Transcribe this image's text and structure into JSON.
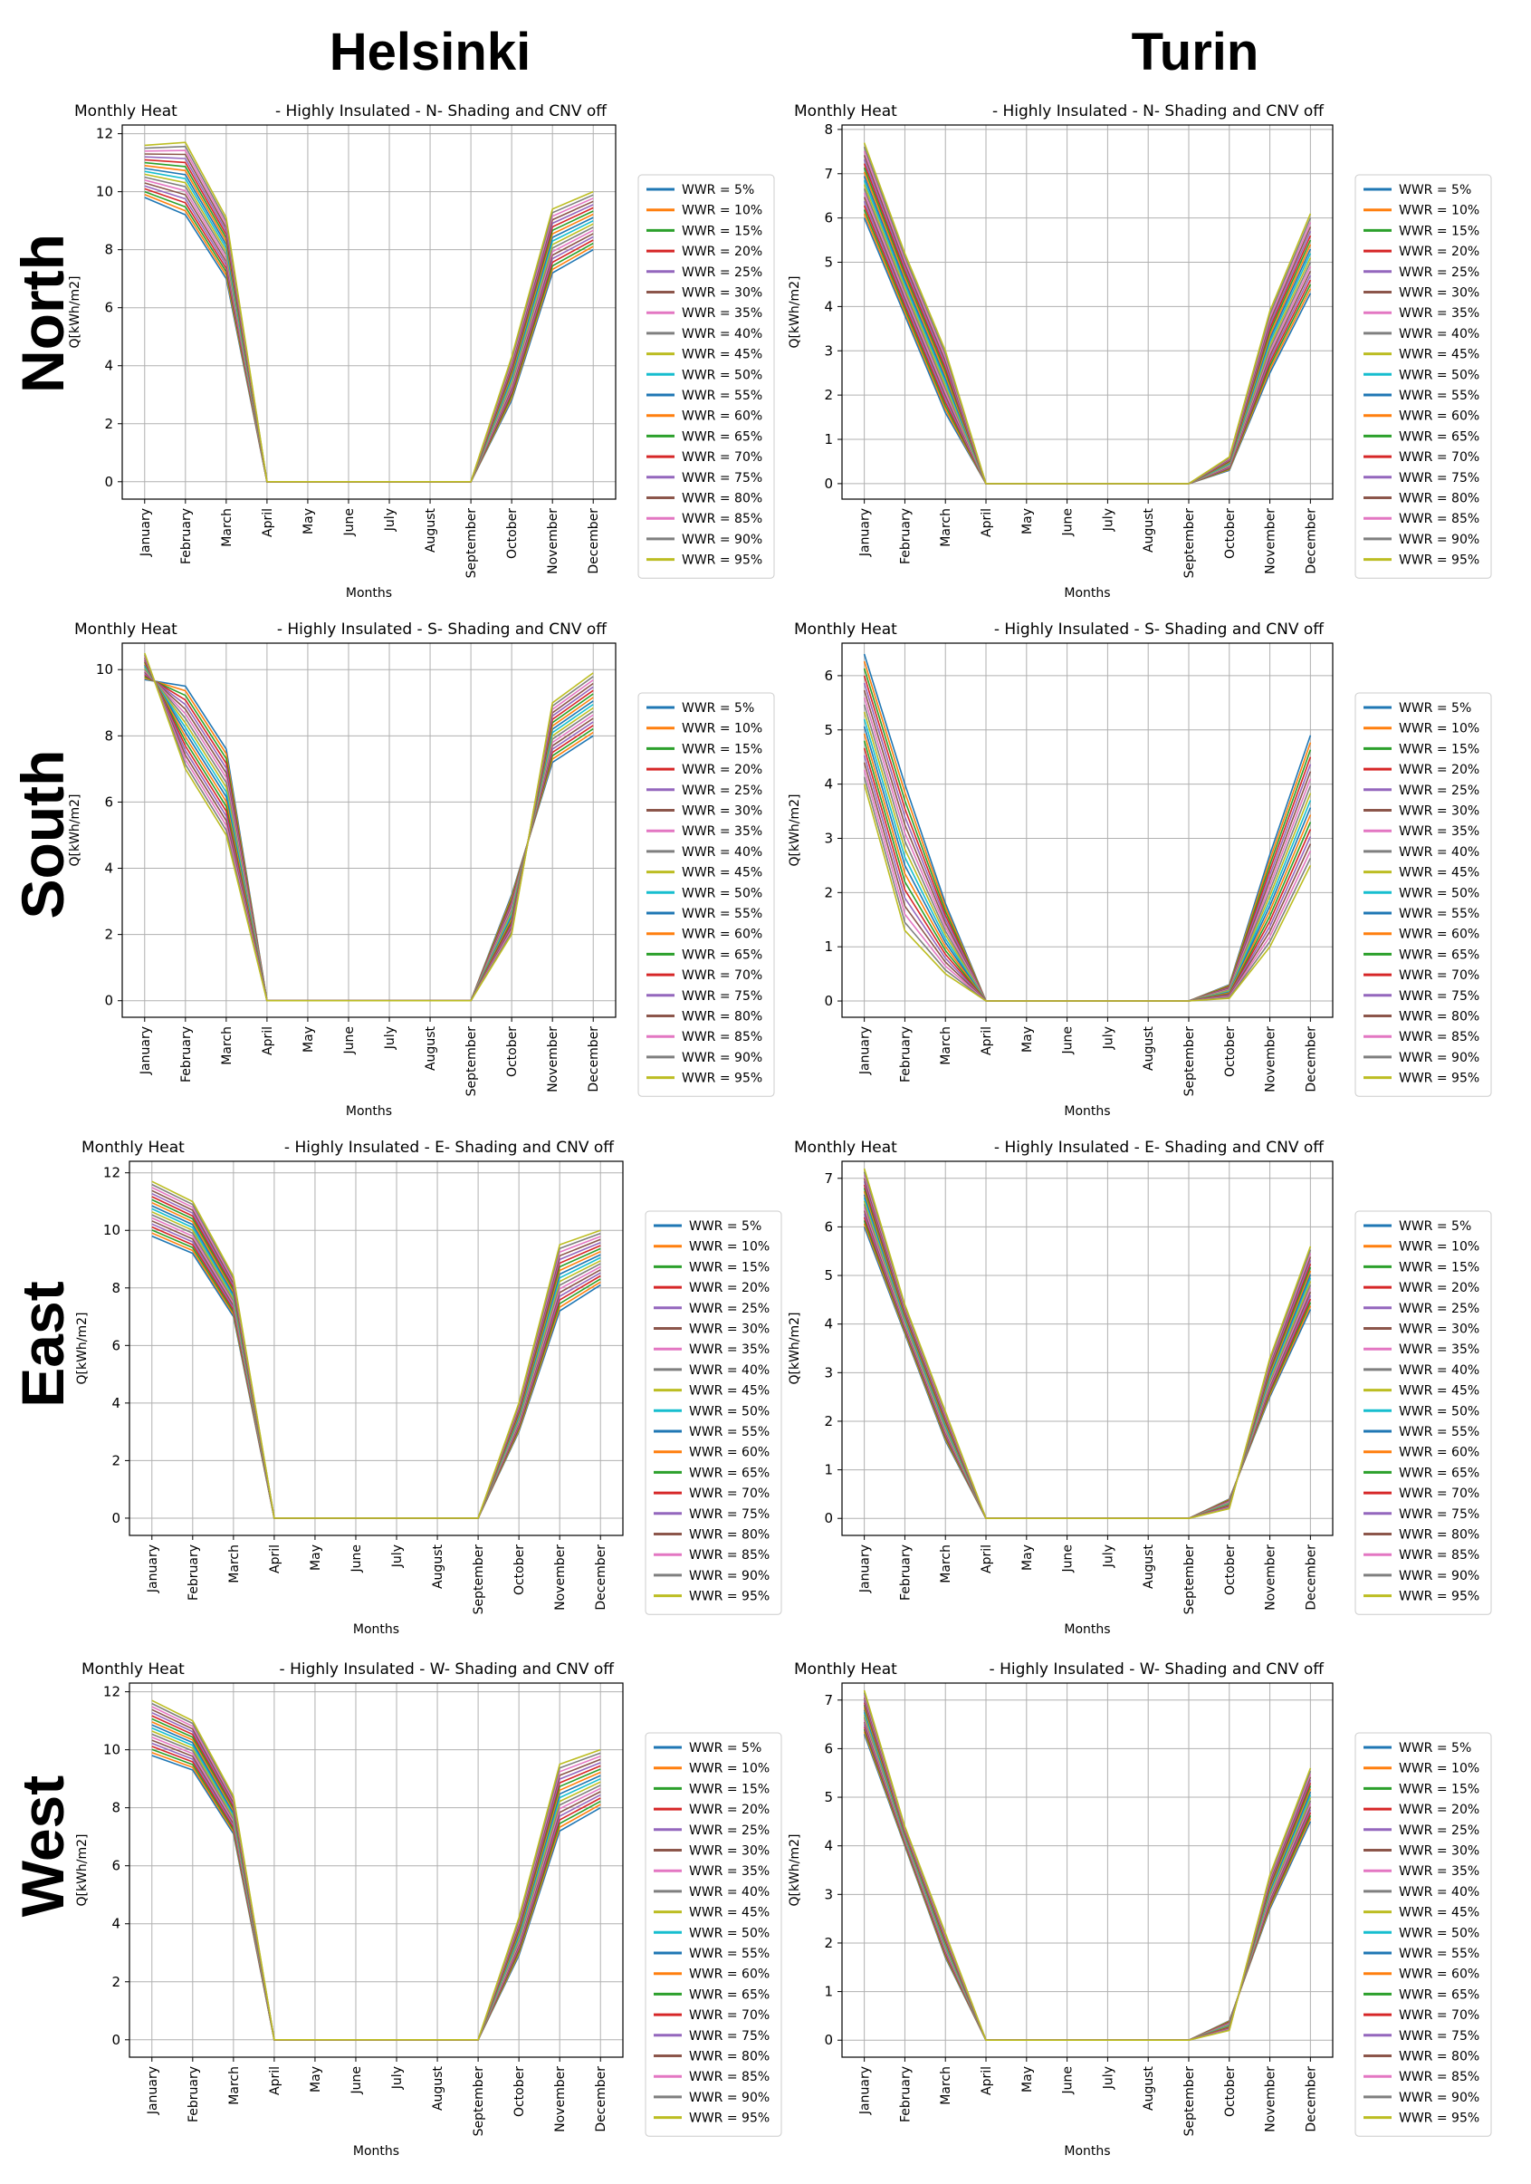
{
  "figure": {
    "columns": [
      "Helsinki",
      "Turin"
    ],
    "rows": [
      "North",
      "South",
      "East",
      "West"
    ]
  },
  "legend_labels": [
    "WWR = 5%",
    "WWR = 10%",
    "WWR = 15%",
    "WWR = 20%",
    "WWR = 25%",
    "WWR = 30%",
    "WWR = 35%",
    "WWR = 40%",
    "WWR = 45%",
    "WWR = 50%",
    "WWR = 55%",
    "WWR = 60%",
    "WWR = 65%",
    "WWR = 70%",
    "WWR = 75%",
    "WWR = 80%",
    "WWR = 85%",
    "WWR = 90%",
    "WWR = 95%"
  ],
  "colors": [
    "#1f77b4",
    "#ff7f0e",
    "#2ca02c",
    "#d62728",
    "#9467bd",
    "#8c564b",
    "#e377c2",
    "#7f7f7f",
    "#bcbd22",
    "#17becf",
    "#1f77b4",
    "#ff7f0e",
    "#2ca02c",
    "#d62728",
    "#9467bd",
    "#8c564b",
    "#e377c2",
    "#7f7f7f",
    "#bcbd22"
  ],
  "chart_data": [
    {
      "type": "line",
      "city": "Helsinki",
      "orientation": "North",
      "title_left": "Monthly Heat",
      "title_right": "- Highly Insulated - N- Shading and CNV off",
      "xlabel": "Months",
      "ylabel": "Q[kWh/m2]",
      "ylim": [
        -0.6,
        12.3
      ],
      "yticks": [
        0,
        2,
        4,
        6,
        8,
        10,
        12
      ],
      "categories": [
        "January",
        "February",
        "March",
        "April",
        "May",
        "June",
        "July",
        "August",
        "September",
        "October",
        "November",
        "December"
      ],
      "series_first": [
        9.8,
        9.2,
        7.0,
        0,
        0,
        0,
        0,
        0,
        0,
        2.8,
        7.2,
        8.0
      ],
      "series_last": [
        11.6,
        11.7,
        9.1,
        0,
        0,
        0,
        0,
        0,
        0,
        4.3,
        9.4,
        10.0
      ]
    },
    {
      "type": "line",
      "city": "Turin",
      "orientation": "North",
      "title_left": "Monthly Heat",
      "title_right": "- Highly Insulated - N- Shading and CNV off",
      "xlabel": "Months",
      "ylabel": "Q[kWh/m2]",
      "ylim": [
        -0.35,
        8.1
      ],
      "yticks": [
        0,
        1,
        2,
        3,
        4,
        5,
        6,
        7,
        8
      ],
      "categories": [
        "January",
        "February",
        "March",
        "April",
        "May",
        "June",
        "July",
        "August",
        "September",
        "October",
        "November",
        "December"
      ],
      "series_first": [
        6.0,
        3.8,
        1.6,
        0,
        0,
        0,
        0,
        0,
        0,
        0.3,
        2.5,
        4.3
      ],
      "series_last": [
        7.7,
        5.2,
        3.0,
        0,
        0,
        0,
        0,
        0,
        0,
        0.6,
        3.9,
        6.1
      ]
    },
    {
      "type": "line",
      "city": "Helsinki",
      "orientation": "South",
      "title_left": "Monthly Heat",
      "title_right": "- Highly Insulated - S- Shading and CNV off",
      "xlabel": "Months",
      "ylabel": "Q[kWh/m2]",
      "ylim": [
        -0.5,
        10.8
      ],
      "yticks": [
        0,
        2,
        4,
        6,
        8,
        10
      ],
      "categories": [
        "January",
        "February",
        "March",
        "April",
        "May",
        "June",
        "July",
        "August",
        "September",
        "October",
        "November",
        "December"
      ],
      "series_first": [
        9.7,
        9.5,
        7.6,
        0,
        0,
        0,
        0,
        0,
        0,
        3.2,
        7.2,
        8.0
      ],
      "series_last": [
        10.5,
        7.0,
        5.0,
        0,
        0,
        0,
        0,
        0,
        0,
        2.0,
        9.0,
        9.9
      ]
    },
    {
      "type": "line",
      "city": "Turin",
      "orientation": "South",
      "title_left": "Monthly Heat",
      "title_right": "- Highly Insulated - S- Shading and CNV off",
      "xlabel": "Months",
      "ylabel": "Q[kWh/m2]",
      "ylim": [
        -0.3,
        6.6
      ],
      "yticks": [
        0,
        1,
        2,
        3,
        4,
        5,
        6
      ],
      "categories": [
        "January",
        "February",
        "March",
        "April",
        "May",
        "June",
        "July",
        "August",
        "September",
        "October",
        "November",
        "December"
      ],
      "series_first": [
        6.4,
        4.0,
        1.8,
        0,
        0,
        0,
        0,
        0,
        0,
        0.3,
        2.7,
        4.9
      ],
      "series_last": [
        4.0,
        1.3,
        0.5,
        0,
        0,
        0,
        0,
        0,
        0,
        0.05,
        1.0,
        2.5
      ]
    },
    {
      "type": "line",
      "city": "Helsinki",
      "orientation": "East",
      "title_left": "Monthly Heat",
      "title_right": "- Highly Insulated - E- Shading and CNV off",
      "xlabel": "Months",
      "ylabel": "Q[kWh/m2]",
      "ylim": [
        -0.6,
        12.4
      ],
      "yticks": [
        0,
        2,
        4,
        6,
        8,
        10,
        12
      ],
      "categories": [
        "January",
        "February",
        "March",
        "April",
        "May",
        "June",
        "July",
        "August",
        "September",
        "October",
        "November",
        "December"
      ],
      "series_first": [
        9.8,
        9.2,
        7.0,
        0,
        0,
        0,
        0,
        0,
        0,
        3.0,
        7.2,
        8.1
      ],
      "series_last": [
        11.7,
        11.0,
        8.4,
        0,
        0,
        0,
        0,
        0,
        0,
        4.0,
        9.5,
        10.0
      ]
    },
    {
      "type": "line",
      "city": "Turin",
      "orientation": "East",
      "title_left": "Monthly Heat",
      "title_right": "- Highly Insulated - E- Shading and CNV off",
      "xlabel": "Months",
      "ylabel": "Q[kWh/m2]",
      "ylim": [
        -0.35,
        7.35
      ],
      "yticks": [
        0,
        1,
        2,
        3,
        4,
        5,
        6,
        7
      ],
      "categories": [
        "January",
        "February",
        "March",
        "April",
        "May",
        "June",
        "July",
        "August",
        "September",
        "October",
        "November",
        "December"
      ],
      "series_first": [
        6.0,
        3.8,
        1.6,
        0,
        0,
        0,
        0,
        0,
        0,
        0.4,
        2.5,
        4.3
      ],
      "series_last": [
        7.2,
        4.4,
        2.2,
        0,
        0,
        0,
        0,
        0,
        0,
        0.2,
        3.3,
        5.6
      ]
    },
    {
      "type": "line",
      "city": "Helsinki",
      "orientation": "West",
      "title_left": "Monthly Heat",
      "title_right": "- Highly Insulated - W- Shading and CNV off",
      "xlabel": "Months",
      "ylabel": "Q[kWh/m2]",
      "ylim": [
        -0.6,
        12.3
      ],
      "yticks": [
        0,
        2,
        4,
        6,
        8,
        10,
        12
      ],
      "categories": [
        "January",
        "February",
        "March",
        "April",
        "May",
        "June",
        "July",
        "August",
        "September",
        "October",
        "November",
        "December"
      ],
      "series_first": [
        9.8,
        9.3,
        7.1,
        0,
        0,
        0,
        0,
        0,
        0,
        2.9,
        7.2,
        8.0
      ],
      "series_last": [
        11.7,
        11.0,
        8.4,
        0,
        0,
        0,
        0,
        0,
        0,
        4.2,
        9.5,
        10.0
      ]
    },
    {
      "type": "line",
      "city": "Turin",
      "orientation": "West",
      "title_left": "Monthly Heat",
      "title_right": "- Highly Insulated - W- Shading and CNV off",
      "xlabel": "Months",
      "ylabel": "Q[kWh/m2]",
      "ylim": [
        -0.35,
        7.35
      ],
      "yticks": [
        0,
        1,
        2,
        3,
        4,
        5,
        6,
        7
      ],
      "categories": [
        "January",
        "February",
        "March",
        "April",
        "May",
        "June",
        "July",
        "August",
        "September",
        "October",
        "November",
        "December"
      ],
      "series_first": [
        6.3,
        4.0,
        1.7,
        0,
        0,
        0,
        0,
        0,
        0,
        0.4,
        2.7,
        4.5
      ],
      "series_last": [
        7.2,
        4.4,
        2.2,
        0,
        0,
        0,
        0,
        0,
        0,
        0.2,
        3.4,
        5.6
      ]
    }
  ]
}
